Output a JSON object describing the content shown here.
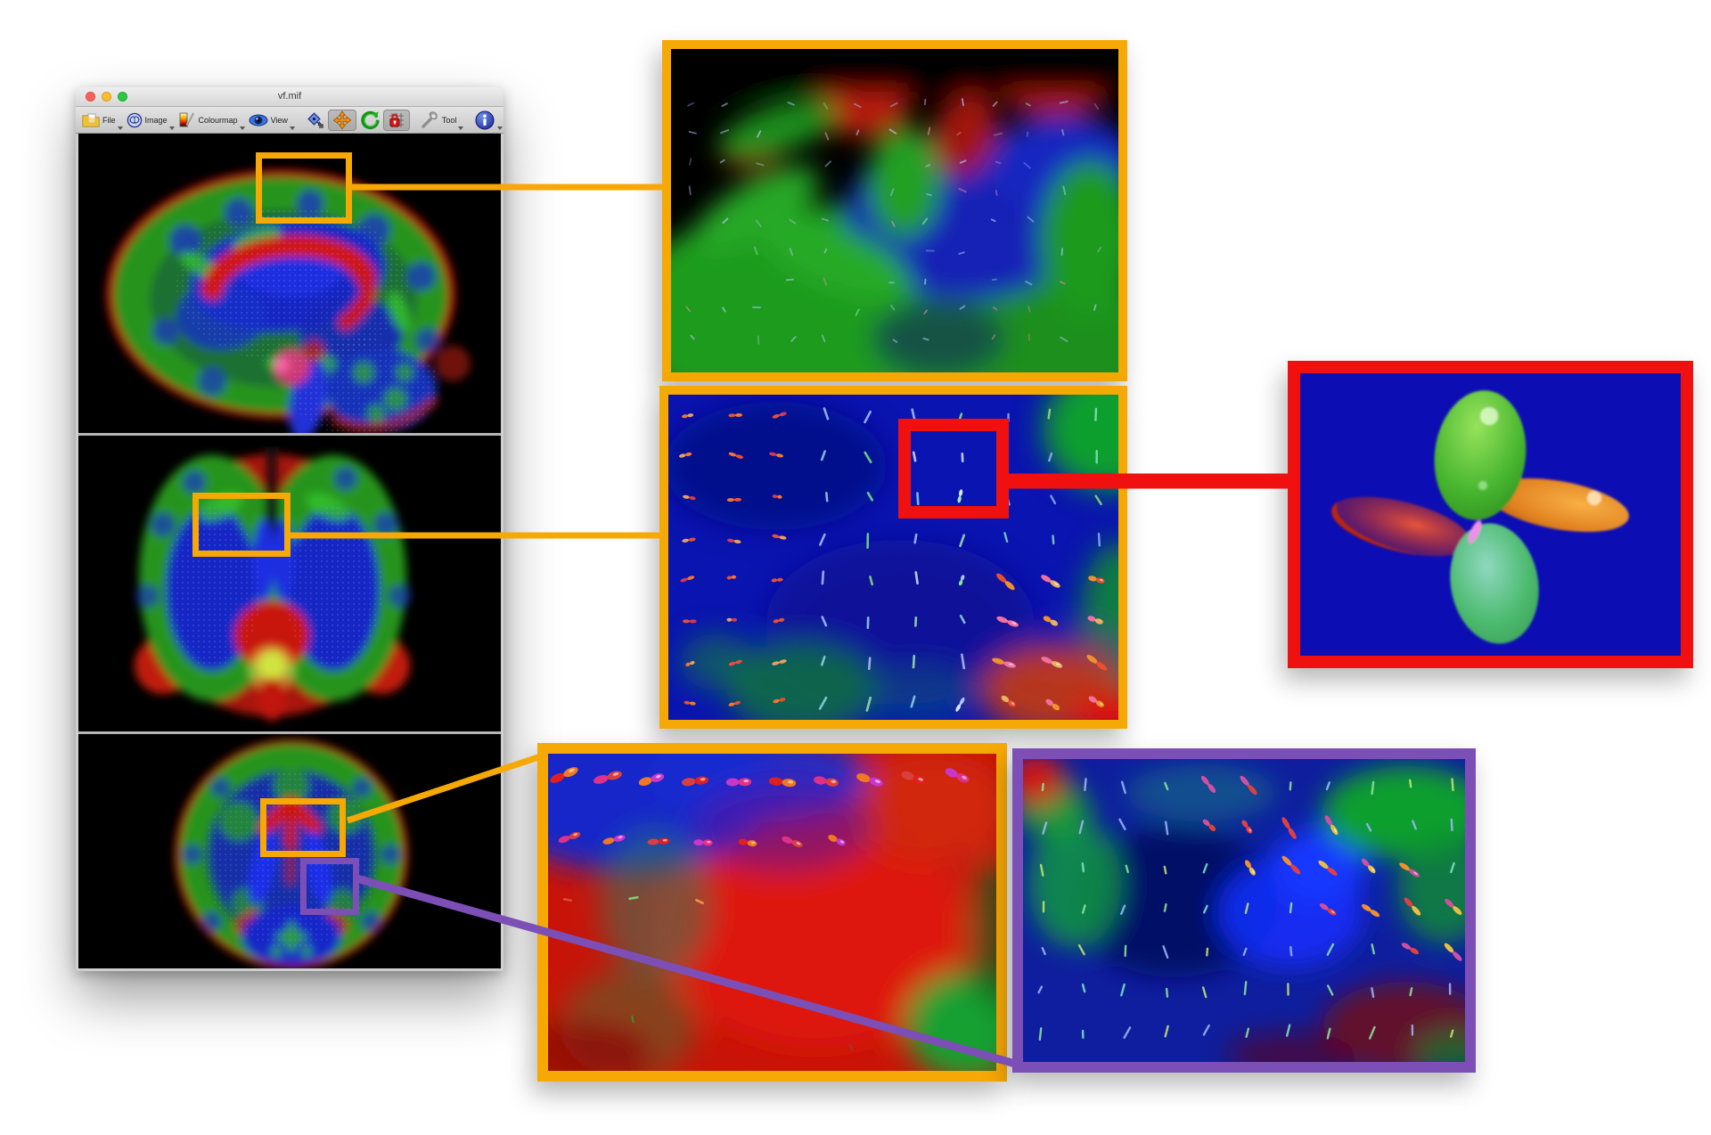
{
  "window": {
    "title": "vf.mif",
    "traffic_lights": [
      "close",
      "minimize",
      "zoom"
    ],
    "toolbar": {
      "menus": [
        {
          "id": "file",
          "label": "File",
          "icon": "folder-icon"
        },
        {
          "id": "image",
          "label": "Image",
          "icon": "brain-icon"
        },
        {
          "id": "colourmap",
          "label": "Colourmap",
          "icon": "colourmap-icon"
        },
        {
          "id": "view",
          "label": "View",
          "icon": "eye-icon"
        }
      ],
      "mode_buttons": [
        {
          "id": "focus",
          "icon": "crosshair-select-icon",
          "active": false
        },
        {
          "id": "pan",
          "icon": "move-arrows-icon",
          "active": true
        },
        {
          "id": "rotate",
          "icon": "rotate-arrow-icon",
          "active": false
        },
        {
          "id": "voxel-lock",
          "icon": "grid-lock-icon",
          "active": true
        }
      ],
      "tool_menu": {
        "label": "Tool",
        "icon": "wrench-icon"
      },
      "info_menu": {
        "icon": "info-icon"
      }
    },
    "views": [
      "sagittal",
      "coronal",
      "axial"
    ]
  },
  "figure": {
    "panels": [
      {
        "name": "zoom-panel-sagittal-roi",
        "border": "highlight_yellow"
      },
      {
        "name": "zoom-panel-coronal-roi",
        "border": "highlight_yellow"
      },
      {
        "name": "zoom-panel-single-odf",
        "border": "highlight_red"
      },
      {
        "name": "zoom-panel-axial-roi",
        "border": "highlight_yellow"
      },
      {
        "name": "zoom-panel-axial-roi-2",
        "border": "highlight_purple"
      }
    ]
  },
  "colors": {
    "highlight_yellow": "#F6A805",
    "highlight_red": "#F01010",
    "highlight_purple": "#7B4FB6",
    "odf_panel_blue": "#0D0DB4",
    "titlebar_close": "#FF5F57",
    "titlebar_min": "#FEBC2E",
    "titlebar_zoom": "#28C940",
    "viewport_black": "#000000"
  }
}
